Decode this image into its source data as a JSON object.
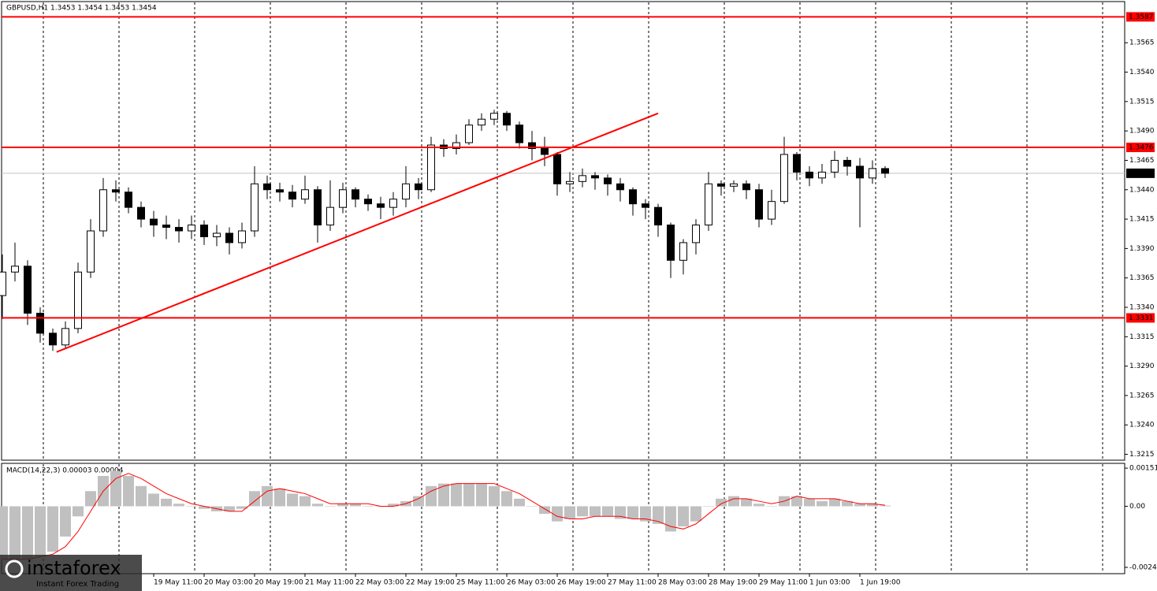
{
  "chart_data": [
    {
      "type": "candlestick",
      "title": "GBPUSD,H1  1.3453 1.3454 1.3453 1.3454",
      "categories": [
        null,
        null,
        null,
        null,
        null,
        null,
        null,
        null,
        null,
        null,
        null,
        null,
        "19 May 11:00",
        null,
        null,
        null,
        "20 May 03:00",
        null,
        null,
        null,
        "20 May 19:00",
        null,
        null,
        null,
        "21 May 11:00",
        null,
        null,
        null,
        "22 May 03:00",
        null,
        null,
        null,
        "22 May 19:00",
        null,
        null,
        null,
        "25 May 11:00",
        null,
        null,
        null,
        "26 May 03:00",
        null,
        null,
        null,
        "26 May 19:00",
        null,
        null,
        null,
        "27 May 11:00",
        null,
        null,
        null,
        "28 May 03:00",
        null,
        null,
        null,
        "28 May 19:00",
        null,
        null,
        null,
        "29 May 11:00",
        null,
        null,
        null,
        "1 Jun 03:00",
        null,
        null,
        null,
        "1 Jun 19:00",
        null,
        null
      ],
      "open": [
        1.335,
        1.337,
        1.3375,
        1.3335,
        1.3318,
        1.3308,
        1.3322,
        1.337,
        1.3405,
        1.344,
        1.3438,
        1.3425,
        1.3415,
        1.341,
        1.3408,
        1.3405,
        1.341,
        1.34,
        1.3403,
        1.3395,
        1.3405,
        1.3445,
        1.344,
        1.3438,
        1.3432,
        1.344,
        1.341,
        1.3425,
        1.344,
        1.3432,
        1.3428,
        1.3425,
        1.3432,
        1.3445,
        1.344,
        1.3478,
        1.3475,
        1.348,
        1.3495,
        1.35,
        1.3505,
        1.3495,
        1.348,
        1.3475,
        1.347,
        1.3445,
        1.3447,
        1.3452,
        1.345,
        1.3445,
        1.344,
        1.3428,
        1.3425,
        1.341,
        1.338,
        1.3395,
        1.341,
        1.3445,
        1.3443,
        1.3445,
        1.344,
        1.3415,
        1.343,
        1.347,
        1.3455,
        1.345,
        1.3455,
        1.3465,
        1.346,
        1.345,
        1.3458
      ],
      "high": [
        1.3385,
        1.3395,
        1.338,
        1.334,
        1.3322,
        1.3328,
        1.3378,
        1.3415,
        1.345,
        1.3448,
        1.3442,
        1.343,
        1.3422,
        1.3418,
        1.3415,
        1.3418,
        1.3414,
        1.341,
        1.3408,
        1.3412,
        1.346,
        1.3452,
        1.3446,
        1.3444,
        1.3452,
        1.3443,
        1.3448,
        1.3446,
        1.3442,
        1.3436,
        1.3434,
        1.3438,
        1.346,
        1.345,
        1.3485,
        1.3483,
        1.3487,
        1.35,
        1.3505,
        1.3508,
        1.3507,
        1.3498,
        1.349,
        1.3485,
        1.3472,
        1.3455,
        1.3458,
        1.3455,
        1.3453,
        1.345,
        1.3442,
        1.3432,
        1.3428,
        1.3412,
        1.3398,
        1.3415,
        1.3455,
        1.3448,
        1.3448,
        1.3448,
        1.3445,
        1.344,
        1.3485,
        1.3472,
        1.346,
        1.3462,
        1.3473,
        1.3468,
        1.3467,
        1.3465,
        1.346
      ],
      "low": [
        1.333,
        1.3362,
        1.3325,
        1.331,
        1.3303,
        1.3305,
        1.3318,
        1.3365,
        1.34,
        1.343,
        1.342,
        1.3408,
        1.34,
        1.3398,
        1.3395,
        1.3398,
        1.3393,
        1.3392,
        1.3385,
        1.339,
        1.34,
        1.3432,
        1.343,
        1.3425,
        1.3428,
        1.3395,
        1.3405,
        1.342,
        1.3425,
        1.3422,
        1.3415,
        1.3418,
        1.3425,
        1.3432,
        1.3438,
        1.3468,
        1.347,
        1.3478,
        1.349,
        1.3495,
        1.349,
        1.3475,
        1.3465,
        1.346,
        1.3435,
        1.3438,
        1.3442,
        1.344,
        1.3435,
        1.343,
        1.3418,
        1.3415,
        1.34,
        1.3365,
        1.3368,
        1.3385,
        1.3405,
        1.3435,
        1.3438,
        1.3432,
        1.3408,
        1.341,
        1.3428,
        1.3448,
        1.3443,
        1.3445,
        1.345,
        1.3452,
        1.3408,
        1.3445,
        1.345
      ],
      "close": [
        1.337,
        1.3375,
        1.3335,
        1.3318,
        1.3308,
        1.3322,
        1.337,
        1.3405,
        1.344,
        1.3438,
        1.3425,
        1.3415,
        1.341,
        1.3408,
        1.3405,
        1.341,
        1.34,
        1.3403,
        1.3395,
        1.3405,
        1.3445,
        1.344,
        1.3438,
        1.3432,
        1.344,
        1.341,
        1.3425,
        1.344,
        1.3432,
        1.3428,
        1.3425,
        1.3432,
        1.3445,
        1.344,
        1.3478,
        1.3475,
        1.348,
        1.3495,
        1.35,
        1.3505,
        1.3495,
        1.348,
        1.3475,
        1.347,
        1.3445,
        1.3447,
        1.3452,
        1.345,
        1.3445,
        1.344,
        1.3428,
        1.3425,
        1.341,
        1.338,
        1.3395,
        1.341,
        1.3445,
        1.3443,
        1.3445,
        1.344,
        1.3415,
        1.343,
        1.347,
        1.3455,
        1.345,
        1.3455,
        1.3465,
        1.346,
        1.345,
        1.3458,
        1.3454
      ],
      "up_color": "#ffffff",
      "down_color": "#000000",
      "ylim": [
        1.321,
        1.36
      ],
      "yticks": [
        1.3565,
        {
          "value": 1.354,
          "label": "1.3540"
        },
        1.3515,
        {
          "value": 1.349,
          "label": "1.3490"
        },
        1.3465,
        {
          "value": 1.344,
          "label": "1.3440"
        },
        1.3415,
        {
          "value": 1.339,
          "label": "1.3390"
        },
        1.3365,
        {
          "value": 1.334,
          "label": "1.3340"
        },
        1.3315,
        {
          "value": 1.329,
          "label": "1.3290"
        },
        1.3265,
        {
          "value": 1.324,
          "label": "1.3240"
        },
        1.3215
      ],
      "levels": [
        1.3587,
        1.3476,
        1.3331
      ],
      "level_color": "#ff0000",
      "current_price": 1.3454,
      "trendline": {
        "x": [
          4.3,
          52
        ],
        "y": [
          1.3302,
          1.3505
        ],
        "color": "#ff0000"
      },
      "grid": true
    },
    {
      "type": "macd",
      "title": "MACD(14,22,3) 0.00003 0.00004",
      "histogram": [
        -0.0021,
        -0.0021,
        -0.0021,
        -0.002,
        -0.0018,
        -0.0012,
        -0.0004,
        0.0006,
        0.0012,
        0.0014,
        0.0012,
        0.0008,
        0.0005,
        0.0003,
        0.0001,
        0.0,
        -0.0001,
        -0.0002,
        -0.0002,
        -0.0001,
        0.0006,
        0.0008,
        0.0007,
        0.0005,
        0.0004,
        0.0001,
        0.0,
        0.0001,
        0.0001,
        0.0,
        0.0,
        0.0001,
        0.0002,
        0.0004,
        0.0008,
        0.0009,
        0.0009,
        0.0009,
        0.0009,
        0.0008,
        0.0006,
        0.0003,
        0.0,
        -0.0003,
        -0.0006,
        -0.0005,
        -0.0004,
        -0.0004,
        -0.0004,
        -0.0005,
        -0.0005,
        -0.0006,
        -0.0007,
        -0.001,
        -0.0008,
        -0.0006,
        0.0,
        0.0003,
        0.0004,
        0.0003,
        0.0001,
        0.0,
        0.0004,
        0.0004,
        0.0003,
        0.0002,
        0.0003,
        0.0002,
        0.0001,
        0.0001,
        3e-05
      ],
      "histogram_color": "#c0c0c0",
      "signal": [
        -0.0021,
        -0.0021,
        -0.0021,
        -0.002,
        -0.0019,
        -0.0016,
        -0.001,
        -0.0002,
        0.0006,
        0.0011,
        0.0013,
        0.0011,
        0.0008,
        0.0005,
        0.0003,
        0.0001,
        0.0,
        -0.0001,
        -0.0002,
        -0.0002,
        0.0002,
        0.0006,
        0.0007,
        0.0006,
        0.0005,
        0.0003,
        0.0001,
        0.0001,
        0.0001,
        0.0001,
        0.0,
        0.0,
        0.0001,
        0.0003,
        0.0006,
        0.0008,
        0.0009,
        0.0009,
        0.0009,
        0.0009,
        0.0007,
        0.0005,
        0.0002,
        -0.0001,
        -0.0004,
        -0.0005,
        -0.0005,
        -0.0004,
        -0.0004,
        -0.0004,
        -0.0005,
        -0.0005,
        -0.0006,
        -0.0008,
        -0.0009,
        -0.0007,
        -0.0003,
        0.0001,
        0.0003,
        0.0003,
        0.0002,
        0.0001,
        0.0002,
        0.0004,
        0.0003,
        0.0003,
        0.0003,
        0.0002,
        0.0001,
        0.0001,
        4e-05
      ],
      "signal_color": "#ff0000",
      "ylim": [
        -0.00267,
        0.0017
      ],
      "yticks": [
        0.00151,
        {
          "value": 0,
          "label": "0.00"
        },
        -0.00242
      ]
    }
  ],
  "watermark": {
    "brand": "instaforex",
    "tagline": "Instant Forex Trading"
  }
}
